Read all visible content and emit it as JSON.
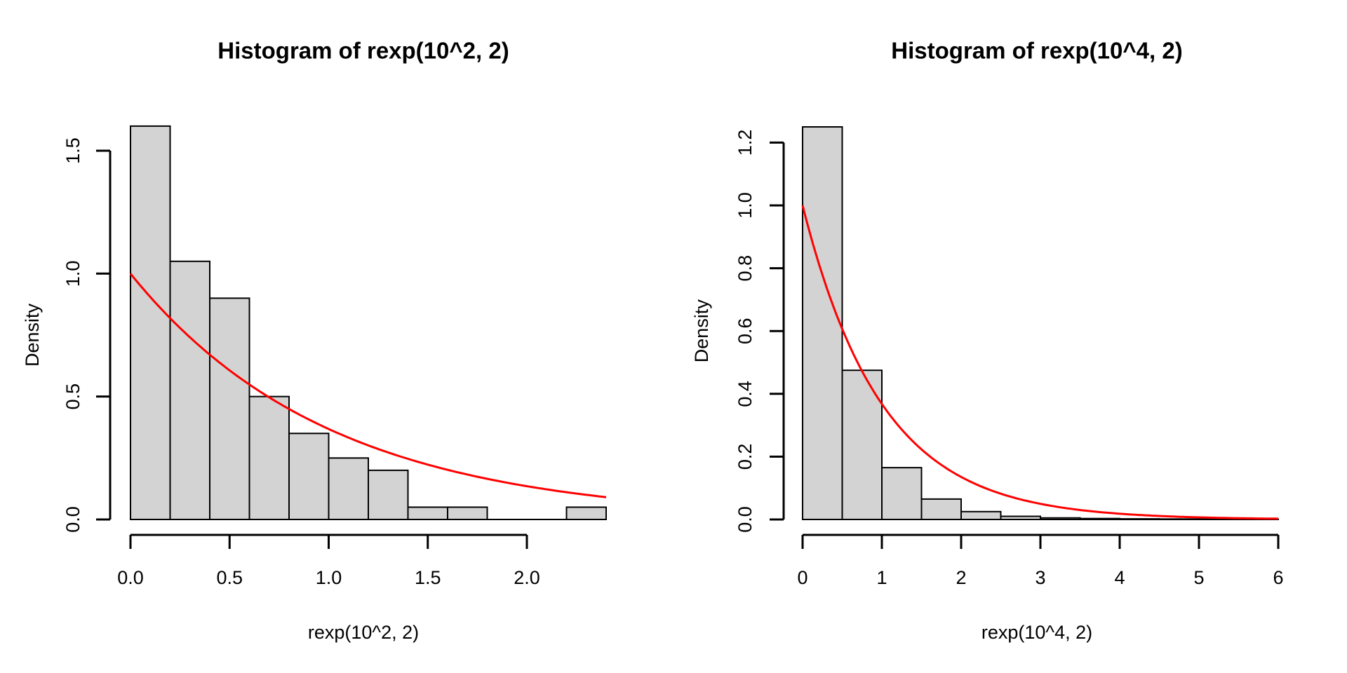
{
  "figure": {
    "background": "#ffffff",
    "colors": {
      "bar_fill": "#d3d3d3",
      "bar_stroke": "#000000",
      "curve": "#ff0000",
      "axis": "#000000",
      "text": "#000000"
    }
  },
  "chart_data": [
    {
      "type": "bar",
      "title": "Histogram of rexp(10^2, 2)",
      "xlabel": "rexp(10^2, 2)",
      "ylabel": "Density",
      "bin_start": 0,
      "bin_width": 0.2,
      "bar_heights": [
        1.6,
        1.05,
        0.9,
        0.5,
        0.35,
        0.25,
        0.2,
        0.05,
        0.05,
        0,
        0,
        0.05
      ],
      "x_tick_values": [
        0,
        0.5,
        1,
        1.5,
        2
      ],
      "x_tick_labels": [
        "0.0",
        "0.5",
        "1.0",
        "1.5",
        "2.0"
      ],
      "y_tick_values": [
        0,
        0.5,
        1,
        1.5
      ],
      "y_tick_labels": [
        "0.0",
        "0.5",
        "1.0",
        "1.5"
      ],
      "xlim": [
        0,
        2.4
      ],
      "ylim": [
        0,
        1.6
      ],
      "grid": false,
      "legend": false,
      "curve": {
        "description": "exponential density overlay",
        "rate": 1,
        "formula": "y = exp(-x)",
        "x_range": [
          0,
          2.4
        ],
        "color": "#ff0000"
      }
    },
    {
      "type": "bar",
      "title": "Histogram of rexp(10^4, 2)",
      "xlabel": "rexp(10^4, 2)",
      "ylabel": "Density",
      "bin_start": 0,
      "bin_width": 0.5,
      "bar_heights": [
        1.25,
        0.475,
        0.165,
        0.065,
        0.025,
        0.01,
        0.005,
        0.003,
        0.002,
        0.0015,
        0.001,
        0.0005
      ],
      "x_tick_values": [
        0,
        1,
        2,
        3,
        4,
        5,
        6
      ],
      "x_tick_labels": [
        "0",
        "1",
        "2",
        "3",
        "4",
        "5",
        "6"
      ],
      "y_tick_values": [
        0,
        0.2,
        0.4,
        0.6,
        0.8,
        1.0,
        1.2
      ],
      "y_tick_labels": [
        "0.0",
        "0.2",
        "0.4",
        "0.6",
        "0.8",
        "1.0",
        "1.2"
      ],
      "xlim": [
        0,
        6
      ],
      "ylim": [
        0,
        1.25
      ],
      "grid": false,
      "legend": false,
      "curve": {
        "description": "exponential density overlay",
        "rate": 1,
        "formula": "y = exp(-x)",
        "x_range": [
          0,
          6
        ],
        "color": "#ff0000"
      }
    }
  ]
}
